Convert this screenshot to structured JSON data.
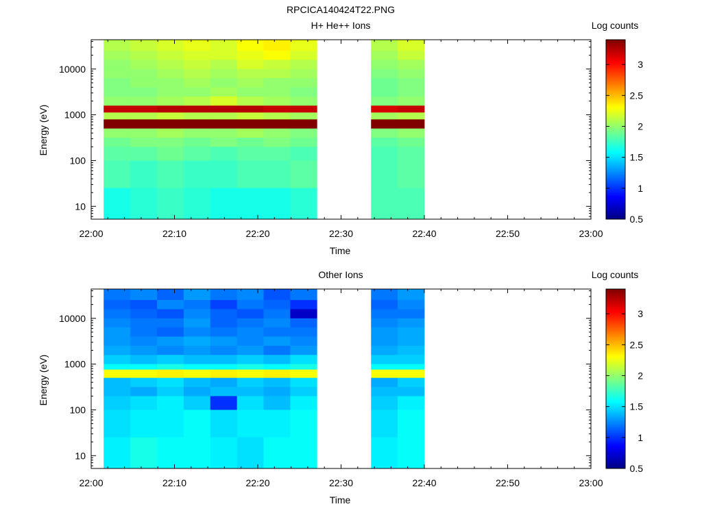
{
  "figure_title": "RPCICA140424T22.PNG",
  "chart_data": [
    {
      "type": "heatmap",
      "title": "H+ He++ Ions",
      "xlabel": "Time",
      "ylabel": "Energy (eV)",
      "colorbar_label": "Log counts",
      "x_ticks": [
        "22:00",
        "22:10",
        "22:20",
        "22:30",
        "22:40",
        "22:50",
        "23:00"
      ],
      "y_ticks": [
        "10",
        "100",
        "1000",
        "10000"
      ],
      "colorbar_ticks": [
        "0.5",
        "1",
        "1.5",
        "2",
        "2.5",
        "3"
      ],
      "colorbar_range": [
        0.5,
        3.4
      ],
      "x_range_minutes": [
        0,
        60
      ],
      "y_log_range": [
        0.72,
        4.64
      ],
      "columns_minutes": [
        [
          1.5,
          4.7
        ],
        [
          4.7,
          7.9
        ],
        [
          7.9,
          11.1
        ],
        [
          11.1,
          14.3
        ],
        [
          14.3,
          17.5
        ],
        [
          17.5,
          20.7
        ],
        [
          20.7,
          23.9
        ],
        [
          23.9,
          27.1
        ],
        [
          33.6,
          36.8
        ],
        [
          36.8,
          40.0
        ]
      ],
      "energy_bands_log10": [
        {
          "range": [
            4.4,
            4.64
          ],
          "values": [
            2.1,
            2.15,
            2.2,
            2.25,
            2.2,
            2.3,
            2.35,
            2.25,
            2.1,
            2.2
          ]
        },
        {
          "range": [
            4.2,
            4.4
          ],
          "values": [
            2.05,
            2.1,
            2.15,
            2.2,
            2.2,
            2.25,
            2.3,
            2.2,
            2.05,
            2.15
          ]
        },
        {
          "range": [
            4.0,
            4.2
          ],
          "values": [
            2.0,
            2.05,
            2.1,
            2.15,
            2.1,
            2.2,
            2.15,
            2.1,
            2.0,
            2.05
          ]
        },
        {
          "range": [
            3.8,
            4.0
          ],
          "values": [
            2.0,
            2.0,
            2.05,
            2.1,
            2.05,
            2.1,
            2.1,
            2.05,
            1.95,
            2.0
          ]
        },
        {
          "range": [
            3.6,
            3.8
          ],
          "values": [
            1.95,
            2.0,
            2.0,
            2.05,
            2.0,
            2.05,
            2.0,
            2.0,
            1.9,
            1.95
          ]
        },
        {
          "range": [
            3.4,
            3.6
          ],
          "values": [
            1.95,
            1.95,
            2.0,
            2.0,
            2.05,
            2.0,
            2.0,
            1.95,
            1.9,
            1.95
          ]
        },
        {
          "range": [
            3.2,
            3.4
          ],
          "values": [
            2.0,
            2.0,
            2.05,
            2.1,
            2.2,
            2.1,
            2.05,
            2.0,
            1.95,
            2.0
          ]
        },
        {
          "range": [
            3.05,
            3.2
          ],
          "values": [
            3.2,
            3.2,
            3.25,
            3.25,
            3.25,
            3.25,
            3.2,
            3.2,
            3.15,
            3.2
          ]
        },
        {
          "range": [
            2.9,
            3.05
          ],
          "values": [
            2.1,
            2.1,
            2.15,
            2.1,
            2.1,
            2.15,
            2.1,
            2.05,
            2.05,
            2.1
          ]
        },
        {
          "range": [
            2.7,
            2.9
          ],
          "values": [
            3.45,
            3.45,
            3.5,
            3.5,
            3.5,
            3.5,
            3.45,
            3.45,
            3.4,
            3.45
          ]
        },
        {
          "range": [
            2.5,
            2.7
          ],
          "values": [
            2.0,
            2.0,
            2.05,
            2.0,
            2.0,
            2.05,
            2.0,
            1.95,
            1.95,
            2.0
          ]
        },
        {
          "range": [
            2.3,
            2.5
          ],
          "values": [
            1.9,
            1.95,
            1.95,
            1.9,
            1.95,
            1.9,
            1.95,
            1.9,
            1.85,
            1.9
          ]
        },
        {
          "range": [
            2.0,
            2.3
          ],
          "values": [
            1.85,
            1.85,
            1.9,
            1.85,
            1.8,
            1.85,
            1.85,
            1.8,
            1.8,
            1.85
          ]
        },
        {
          "range": [
            1.4,
            2.0
          ],
          "values": [
            1.8,
            1.75,
            1.8,
            1.75,
            1.75,
            1.8,
            1.8,
            1.85,
            1.8,
            1.85
          ]
        },
        {
          "range": [
            0.72,
            1.4
          ],
          "values": [
            1.65,
            1.7,
            1.75,
            1.7,
            1.65,
            1.65,
            1.65,
            1.7,
            1.8,
            1.8
          ]
        }
      ]
    },
    {
      "type": "heatmap",
      "title": "Other Ions",
      "xlabel": "Time",
      "ylabel": "Energy (eV)",
      "colorbar_label": "Log counts",
      "x_ticks": [
        "22:00",
        "22:10",
        "22:20",
        "22:30",
        "22:40",
        "22:50",
        "23:00"
      ],
      "y_ticks": [
        "10",
        "100",
        "1000",
        "10000"
      ],
      "colorbar_ticks": [
        "0.5",
        "1",
        "1.5",
        "2",
        "2.5",
        "3"
      ],
      "colorbar_range": [
        0.5,
        3.4
      ],
      "x_range_minutes": [
        0,
        60
      ],
      "y_log_range": [
        0.72,
        4.64
      ],
      "columns_minutes": [
        [
          1.5,
          4.7
        ],
        [
          4.7,
          7.9
        ],
        [
          7.9,
          11.1
        ],
        [
          11.1,
          14.3
        ],
        [
          14.3,
          17.5
        ],
        [
          17.5,
          20.7
        ],
        [
          20.7,
          23.9
        ],
        [
          23.9,
          27.1
        ],
        [
          33.6,
          36.8
        ],
        [
          36.8,
          40.0
        ]
      ],
      "energy_bands_log10": [
        {
          "range": [
            4.4,
            4.64
          ],
          "values": [
            1.2,
            1.25,
            1.15,
            1.3,
            1.2,
            1.25,
            1.1,
            1.2,
            1.2,
            1.3
          ]
        },
        {
          "range": [
            4.2,
            4.4
          ],
          "values": [
            1.15,
            1.1,
            1.25,
            1.2,
            1.05,
            1.2,
            1.15,
            1.0,
            1.15,
            1.25
          ]
        },
        {
          "range": [
            4.0,
            4.2
          ],
          "values": [
            1.2,
            1.15,
            1.1,
            1.25,
            1.15,
            1.1,
            1.2,
            0.7,
            1.2,
            1.2
          ]
        },
        {
          "range": [
            3.8,
            4.0
          ],
          "values": [
            1.25,
            1.2,
            1.2,
            1.3,
            1.15,
            1.2,
            1.25,
            1.15,
            1.25,
            1.3
          ]
        },
        {
          "range": [
            3.6,
            3.8
          ],
          "values": [
            1.3,
            1.2,
            1.15,
            1.25,
            1.2,
            1.25,
            1.2,
            1.2,
            1.3,
            1.35
          ]
        },
        {
          "range": [
            3.4,
            3.6
          ],
          "values": [
            1.3,
            1.25,
            1.3,
            1.35,
            1.3,
            1.25,
            1.3,
            1.25,
            1.3,
            1.35
          ]
        },
        {
          "range": [
            3.2,
            3.4
          ],
          "values": [
            1.35,
            1.3,
            1.25,
            1.3,
            1.25,
            1.3,
            1.2,
            1.3,
            1.35,
            1.4
          ]
        },
        {
          "range": [
            3.0,
            3.2
          ],
          "values": [
            1.45,
            1.4,
            1.45,
            1.4,
            1.4,
            1.45,
            1.4,
            1.5,
            1.45,
            1.45
          ]
        },
        {
          "range": [
            2.88,
            3.0
          ],
          "values": [
            1.6,
            1.6,
            1.65,
            1.6,
            1.6,
            1.65,
            1.6,
            1.65,
            1.6,
            1.6
          ]
        },
        {
          "range": [
            2.7,
            2.88
          ],
          "values": [
            2.3,
            2.3,
            2.35,
            2.3,
            2.35,
            2.3,
            2.35,
            2.3,
            2.3,
            2.3
          ]
        },
        {
          "range": [
            2.5,
            2.7
          ],
          "values": [
            1.4,
            1.45,
            1.5,
            1.4,
            1.35,
            1.45,
            1.4,
            1.5,
            1.35,
            1.45
          ]
        },
        {
          "range": [
            2.3,
            2.5
          ],
          "values": [
            1.4,
            1.35,
            1.45,
            1.35,
            1.4,
            1.4,
            1.35,
            1.45,
            1.4,
            1.4
          ]
        },
        {
          "range": [
            2.0,
            2.3
          ],
          "values": [
            1.45,
            1.5,
            1.55,
            1.45,
            1.0,
            1.5,
            1.4,
            1.55,
            1.45,
            1.55
          ]
        },
        {
          "range": [
            1.4,
            2.0
          ],
          "values": [
            1.5,
            1.55,
            1.55,
            1.6,
            1.5,
            1.55,
            1.55,
            1.6,
            1.5,
            1.6
          ]
        },
        {
          "range": [
            0.72,
            1.4
          ],
          "values": [
            1.55,
            1.65,
            1.6,
            1.6,
            1.55,
            1.5,
            1.6,
            1.6,
            1.55,
            1.6
          ]
        }
      ]
    }
  ]
}
